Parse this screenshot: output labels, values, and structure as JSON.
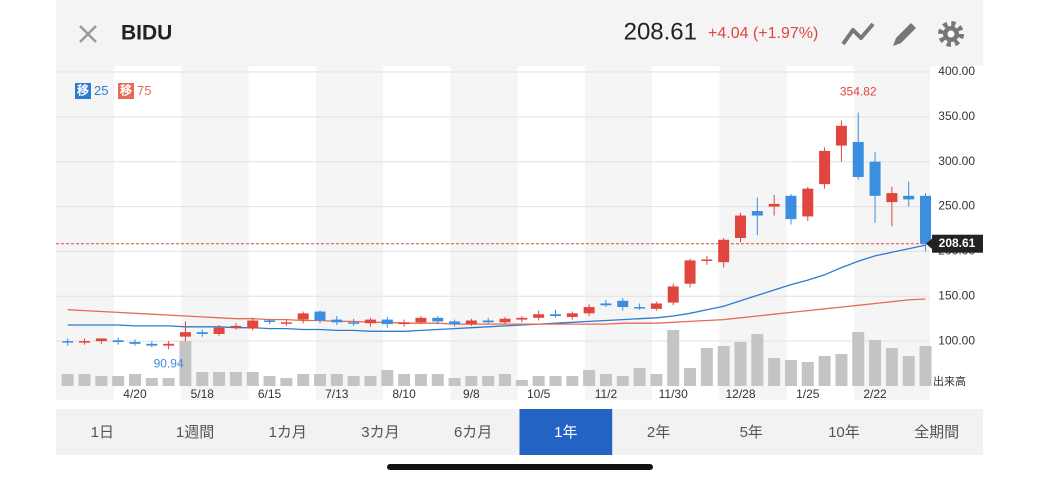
{
  "header": {
    "symbol": "BIDU",
    "price": "208.61",
    "change": "+4.04 (+1.97%)"
  },
  "chart_data": {
    "type": "candlestick",
    "categories": [
      null,
      null,
      null,
      null,
      "4/20",
      null,
      null,
      null,
      "5/18",
      null,
      null,
      null,
      "6/15",
      null,
      null,
      null,
      "7/13",
      null,
      null,
      null,
      "8/10",
      null,
      null,
      null,
      "9/8",
      null,
      null,
      null,
      "10/5",
      null,
      null,
      null,
      "11/2",
      null,
      null,
      null,
      "11/30",
      null,
      null,
      null,
      "12/28",
      null,
      null,
      null,
      "1/25",
      null,
      null,
      null,
      "2/22",
      null,
      null,
      null
    ],
    "open": [
      100,
      99,
      100,
      101,
      99,
      97,
      95,
      105,
      110,
      108,
      115,
      114,
      123,
      120,
      124,
      133,
      124,
      121,
      120,
      124,
      119,
      121,
      126,
      122,
      119,
      123,
      121,
      124,
      126,
      130,
      127,
      131,
      142,
      145,
      138,
      136,
      143,
      164,
      190,
      188,
      215,
      245,
      250,
      262,
      239,
      275,
      318,
      322,
      300,
      255,
      262,
      262
    ],
    "high": [
      103,
      103,
      103,
      104,
      102,
      100,
      100,
      122,
      113,
      118,
      120,
      126,
      125,
      124,
      133,
      134,
      128,
      125,
      126,
      127,
      124,
      128,
      128,
      124,
      125,
      126,
      127,
      128,
      134,
      135,
      133,
      141,
      146,
      148,
      142,
      144,
      164,
      192,
      195,
      215,
      243,
      260,
      263,
      264,
      272,
      316,
      346,
      354.82,
      311,
      272,
      278,
      265
    ],
    "low": [
      95,
      96,
      97,
      96,
      95,
      93,
      90.94,
      100,
      105,
      106,
      113,
      112,
      119,
      117,
      120,
      120,
      118,
      117,
      116,
      115,
      116,
      119,
      119,
      116,
      117,
      119,
      119,
      121,
      123,
      126,
      124,
      128,
      138,
      134,
      135,
      134,
      140,
      160,
      185,
      182,
      210,
      218,
      240,
      230,
      234,
      270,
      300,
      280,
      232,
      228,
      250,
      200
    ],
    "close": [
      99,
      100,
      103,
      99,
      97,
      95,
      97,
      110,
      108,
      115,
      117,
      123,
      122,
      121,
      131,
      123,
      121,
      120,
      124,
      119,
      121,
      126,
      122,
      119,
      123,
      121,
      125,
      126,
      130,
      128,
      131,
      138,
      140,
      138,
      137,
      142,
      161,
      190,
      191,
      213,
      240,
      240,
      253,
      236,
      270,
      312,
      340,
      283,
      262,
      265,
      258,
      208.61
    ],
    "up_color": "#e0463e",
    "down_color": "#3b8ee0",
    "volume": [
      12,
      12,
      10,
      10,
      12,
      8,
      8,
      45,
      14,
      14,
      14,
      14,
      10,
      8,
      12,
      12,
      12,
      10,
      10,
      16,
      12,
      12,
      12,
      8,
      10,
      10,
      12,
      6,
      10,
      10,
      10,
      16,
      12,
      10,
      18,
      12,
      56,
      18,
      38,
      40,
      44,
      52,
      28,
      26,
      24,
      30,
      32,
      54,
      46,
      38,
      30,
      40
    ],
    "volume_color": "#c4c4c4",
    "vlim": [
      0,
      60
    ],
    "volume_label": "出来高",
    "legend_prefix": "移",
    "series": [
      {
        "name": "25",
        "color": "#2f7bd0",
        "values": [
          118,
          118,
          118,
          118,
          117,
          117,
          117,
          116,
          116,
          116,
          115,
          115,
          114,
          114,
          113,
          113,
          112,
          112,
          111,
          111,
          111,
          112,
          113,
          114,
          115,
          116,
          117,
          118,
          119,
          120,
          121,
          122,
          123,
          124,
          125,
          126,
          128,
          131,
          135,
          139,
          145,
          151,
          157,
          163,
          168,
          174,
          182,
          189,
          195,
          199,
          203,
          207
        ]
      },
      {
        "name": "75",
        "color": "#e86a55",
        "values": [
          135,
          134,
          133,
          132,
          131,
          130,
          129,
          128,
          127,
          126,
          125,
          125,
          124,
          124,
          123,
          123,
          122,
          122,
          121,
          121,
          120,
          120,
          120,
          119,
          119,
          119,
          119,
          119,
          119,
          119,
          119,
          119,
          119,
          120,
          120,
          120,
          121,
          122,
          123,
          124,
          126,
          128,
          130,
          132,
          134,
          136,
          138,
          140,
          142,
          144,
          146,
          147
        ]
      }
    ],
    "ylim": [
      50,
      400
    ],
    "yticks": [
      {
        "value": 400,
        "label": "400.00"
      },
      {
        "value": 350,
        "label": "350.00"
      },
      {
        "value": 300,
        "label": "300.00"
      },
      {
        "value": 250,
        "label": "250.00"
      },
      {
        "value": 200,
        "label": "200.00"
      },
      {
        "value": 150,
        "label": "150.00"
      },
      {
        "value": 100,
        "label": "100.00"
      }
    ],
    "grid": true,
    "max_label": "354.82",
    "min_label": "90.94",
    "last_label": "208.61"
  },
  "tabs": {
    "items": [
      "1日",
      "1週間",
      "1カ月",
      "3カ月",
      "6カ月",
      "1年",
      "2年",
      "5年",
      "10年",
      "全期間"
    ],
    "active": 5
  }
}
